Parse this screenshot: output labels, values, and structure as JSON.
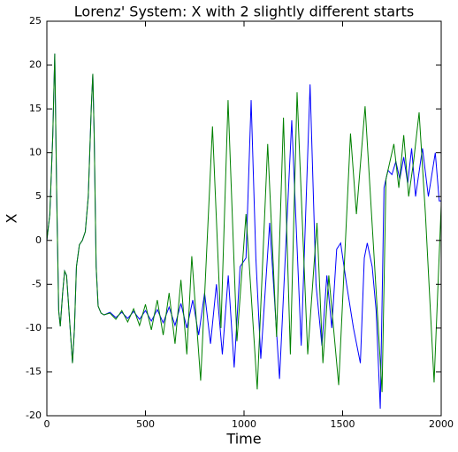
{
  "chart_data": {
    "type": "line",
    "title": "Lorenz' System: X with 2 slightly different starts",
    "xlabel": "Time",
    "ylabel": "X",
    "xlim": [
      0,
      2000
    ],
    "xticks": [
      0,
      500,
      1000,
      1500,
      2000
    ],
    "ylim": [
      -20,
      25
    ],
    "yticks": [
      -20,
      -15,
      -10,
      -5,
      0,
      5,
      10,
      15,
      20,
      25
    ],
    "grid": false,
    "series": [
      {
        "color": "#0000ff",
        "x": [
          0,
          15,
          30,
          40,
          50,
          60,
          68,
          80,
          90,
          100,
          115,
          130,
          140,
          150,
          165,
          180,
          195,
          210,
          225,
          233,
          240,
          250,
          260,
          275,
          290,
          320,
          350,
          380,
          410,
          440,
          470,
          500,
          530,
          560,
          590,
          620,
          650,
          680,
          710,
          740,
          770,
          800,
          830,
          860,
          890,
          920,
          950,
          980,
          1010,
          1036,
          1060,
          1085,
          1130,
          1180,
          1242,
          1290,
          1335,
          1365,
          1395,
          1420,
          1445,
          1470,
          1490,
          1520,
          1555,
          1590,
          1610,
          1625,
          1650,
          1670,
          1691,
          1710,
          1730,
          1750,
          1770,
          1790,
          1810,
          1830,
          1850,
          1870,
          1905,
          1935,
          1970,
          1990,
          2000
        ],
        "values": [
          0,
          3,
          12,
          21.3,
          5,
          -8,
          -9.8,
          -6,
          -3.5,
          -4,
          -9,
          -14,
          -10,
          -3,
          -0.5,
          0,
          1,
          5,
          15,
          19,
          12,
          -3,
          -7.5,
          -8.3,
          -8.5,
          -8.2,
          -8.8,
          -8.2,
          -8.9,
          -8.1,
          -9,
          -8,
          -9.2,
          -7.9,
          -9.4,
          -7.6,
          -9.7,
          -7.2,
          -10,
          -6.8,
          -10.8,
          -6,
          -11.8,
          -5,
          -13,
          -4,
          -14.5,
          -3,
          -2,
          16,
          -2,
          -13.5,
          2,
          -15.8,
          13.7,
          -12,
          17.8,
          -5,
          -12,
          -4,
          -10,
          -1,
          -0.3,
          -5,
          -10,
          -14,
          -2,
          -0.3,
          -3,
          -8,
          -19.2,
          6,
          8,
          7.5,
          9,
          7,
          9.5,
          6.5,
          10.5,
          5,
          10.5,
          5,
          10,
          4.5,
          4.5
        ]
      },
      {
        "color": "#008000",
        "x": [
          0,
          15,
          30,
          40,
          50,
          60,
          68,
          80,
          90,
          100,
          115,
          130,
          140,
          150,
          165,
          180,
          195,
          210,
          225,
          233,
          240,
          250,
          260,
          275,
          290,
          320,
          350,
          380,
          410,
          440,
          470,
          500,
          530,
          560,
          590,
          620,
          650,
          680,
          710,
          735,
          780,
          840,
          883,
          919,
          964,
          1010,
          1067,
          1120,
          1165,
          1200,
          1235,
          1269,
          1323,
          1370,
          1400,
          1430,
          1480,
          1540,
          1570,
          1614,
          1660,
          1700,
          1720,
          1760,
          1785,
          1810,
          1835,
          1860,
          1888,
          1920,
          1964,
          2000
        ],
        "values": [
          0,
          3,
          12,
          21.3,
          5,
          -8,
          -9.8,
          -6,
          -3.5,
          -4,
          -9,
          -14,
          -10,
          -3,
          -0.5,
          0,
          1,
          5,
          15,
          19,
          12,
          -3,
          -7.5,
          -8.3,
          -8.5,
          -8.3,
          -9,
          -8,
          -9.3,
          -7.8,
          -9.7,
          -7.3,
          -10.2,
          -6.8,
          -10.8,
          -6,
          -11.8,
          -4.5,
          -13,
          -1.8,
          -16,
          13,
          -10,
          16,
          -11.5,
          3,
          -17,
          11,
          -11,
          14,
          -13,
          16.9,
          -13,
          2,
          -14,
          -4,
          -16.5,
          12.2,
          3,
          15.3,
          -2,
          -17.3,
          7,
          11,
          6,
          12,
          5,
          9,
          14.6,
          3,
          -16.2,
          4
        ]
      }
    ]
  }
}
